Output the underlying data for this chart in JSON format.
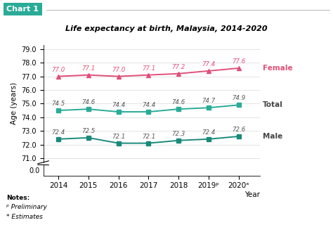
{
  "title": "Life expectancy at birth, Malaysia, 2014-2020",
  "chart_label": "Chart 1",
  "ylabel": "Age (years)",
  "xlabel": "Year",
  "years": [
    2014,
    2015,
    2016,
    2017,
    2018,
    2019,
    2020
  ],
  "year_labels": [
    "2014",
    "2015",
    "2016",
    "2017",
    "2018",
    "2019ᵖ",
    "2020ᵃ"
  ],
  "female": [
    77.0,
    77.1,
    77.0,
    77.1,
    77.2,
    77.4,
    77.6
  ],
  "total": [
    74.5,
    74.6,
    74.4,
    74.4,
    74.6,
    74.7,
    74.9
  ],
  "male": [
    72.4,
    72.5,
    72.1,
    72.1,
    72.3,
    72.4,
    72.6
  ],
  "female_color": "#e0507a",
  "total_color": "#2aab98",
  "male_color": "#1a8a7a",
  "bg_color": "#ffffff",
  "chart_label_bg": "#2aab98",
  "chart_label_color": "#ffffff",
  "notes": [
    "Notes:",
    "ᵖ Preliminary",
    "* Estimates"
  ],
  "female_label": "Female",
  "total_label": "Total",
  "male_label": "Male"
}
